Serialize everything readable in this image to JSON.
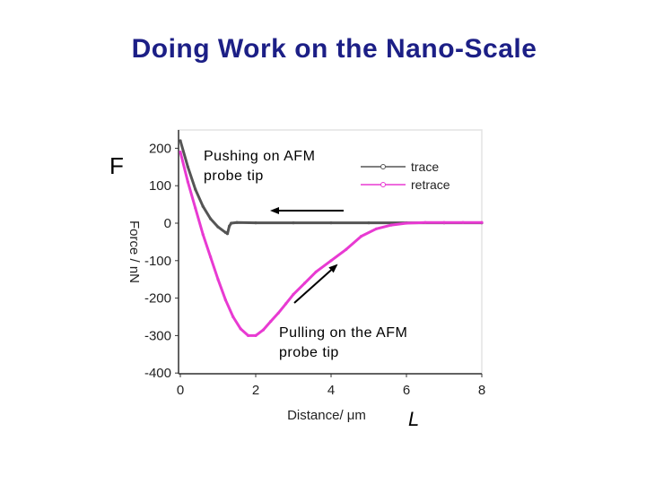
{
  "slide": {
    "title": "Doing Work on the Nano-Scale",
    "f_label": "F",
    "l_label": "L",
    "push_annotation": "Pushing on AFM probe tip",
    "pull_annotation": "Pulling on the AFM probe tip"
  },
  "chart_data": {
    "type": "line",
    "title": "",
    "xlabel": "Distance/ μm",
    "ylabel": "Force / nN",
    "xlim": [
      0,
      8
    ],
    "ylim": [
      -400,
      220
    ],
    "x_ticks": [
      0,
      2,
      4,
      6,
      8
    ],
    "y_ticks": [
      200,
      100,
      0,
      -100,
      -200,
      -300,
      -400
    ],
    "grid": false,
    "legend_position": "top-right",
    "series": [
      {
        "name": "trace",
        "color": "#555555",
        "x": [
          0.0,
          0.2,
          0.4,
          0.6,
          0.8,
          1.0,
          1.2,
          1.25,
          1.3,
          1.35,
          1.5,
          2.0,
          3.0,
          4.0,
          5.0,
          6.0,
          7.0,
          8.0
        ],
        "y": [
          220,
          150,
          90,
          45,
          12,
          -10,
          -25,
          -28,
          -8,
          0,
          2,
          1,
          1,
          1,
          1,
          1,
          1,
          1
        ]
      },
      {
        "name": "retrace",
        "color": "#e83ad2",
        "x": [
          0.0,
          0.2,
          0.4,
          0.6,
          0.8,
          1.0,
          1.2,
          1.4,
          1.6,
          1.8,
          2.0,
          2.2,
          2.4,
          2.6,
          2.8,
          3.0,
          3.3,
          3.6,
          4.0,
          4.4,
          4.8,
          5.2,
          5.6,
          6.0,
          6.5,
          7.0,
          7.5,
          8.0
        ],
        "y": [
          190,
          110,
          40,
          -30,
          -90,
          -150,
          -205,
          -250,
          -282,
          -300,
          -300,
          -285,
          -262,
          -240,
          -215,
          -190,
          -160,
          -130,
          -100,
          -70,
          -35,
          -15,
          -5,
          0,
          2,
          2,
          2,
          2
        ]
      }
    ]
  }
}
